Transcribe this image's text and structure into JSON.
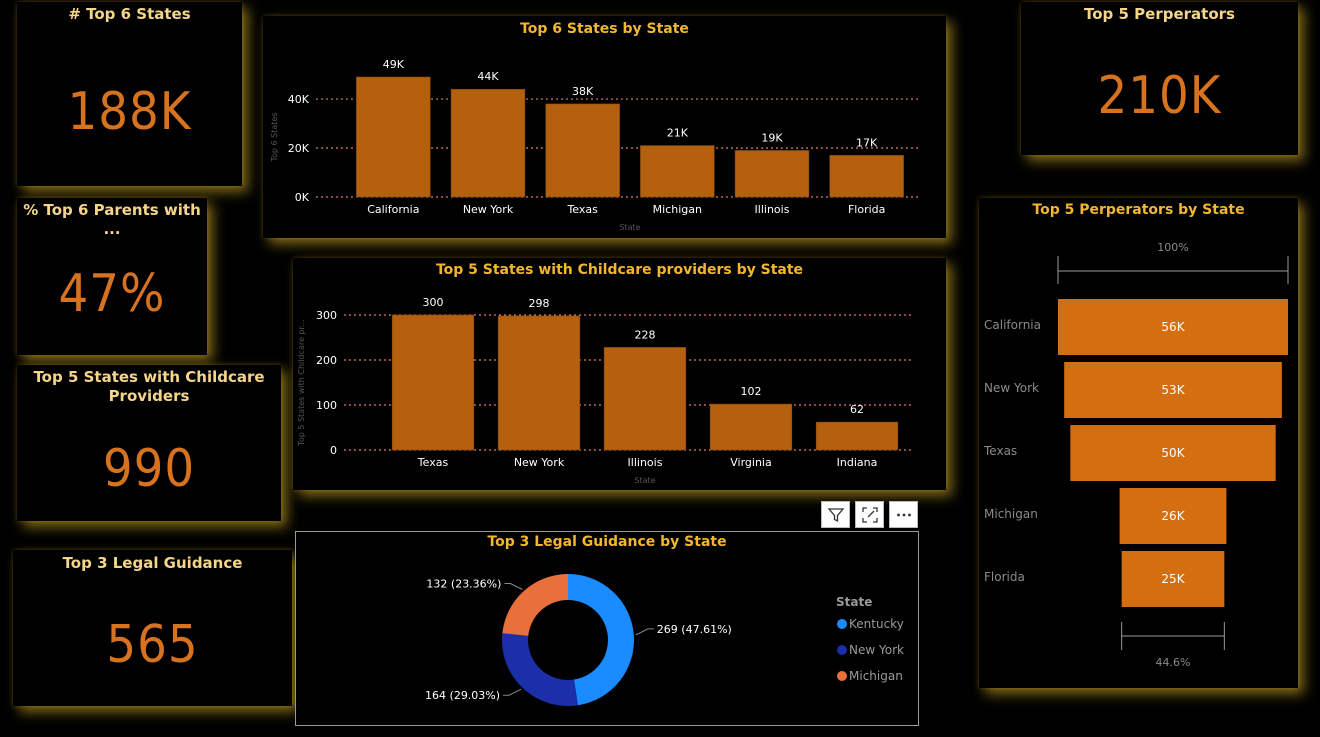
{
  "kpis": {
    "top6_states": {
      "title": "# Top 6 States",
      "value": "188K"
    },
    "pct_parents": {
      "title": "% Top 6 Parents with ...",
      "value": "47%"
    },
    "childcare": {
      "title_line1": "Top 5 States with Childcare",
      "title_line2": "Providers",
      "value": "990"
    },
    "legal": {
      "title": "Top 3 Legal Guidance",
      "value": "565"
    },
    "perpetrators": {
      "title": "Top 5 Perperators",
      "value": "210K"
    }
  },
  "colors": {
    "bar": "#b5600e",
    "funnel": "#d46f11",
    "kpi": "#d7731e",
    "title": "#f2b630",
    "kentucky": "#1a8cff",
    "new_york": "#1a2fa8",
    "michigan": "#e8703a",
    "gridline": "#e07f6a"
  },
  "chart_data": [
    {
      "id": "top6",
      "type": "bar",
      "title": "Top 6 States by State",
      "xlabel": "State",
      "ylabel": "Top 6 States",
      "categories": [
        "California",
        "New York",
        "Texas",
        "Michigan",
        "Illinois",
        "Florida"
      ],
      "values": [
        49000,
        44000,
        38000,
        21000,
        19000,
        17000
      ],
      "data_labels": [
        "49K",
        "44K",
        "38K",
        "21K",
        "19K",
        "17K"
      ],
      "yticks": [
        0,
        20000,
        40000
      ],
      "ytick_labels": [
        "0K",
        "20K",
        "40K"
      ],
      "ylim": [
        0,
        49000
      ],
      "grid": true
    },
    {
      "id": "childcare",
      "type": "bar",
      "title": "Top 5 States with Childcare providers by State",
      "xlabel": "State",
      "ylabel": "Top 5 States with Childcare pr...",
      "categories": [
        "Texas",
        "New York",
        "Illinois",
        "Virginia",
        "Indiana"
      ],
      "values": [
        300,
        298,
        228,
        102,
        62
      ],
      "data_labels": [
        "300",
        "298",
        "228",
        "102",
        "62"
      ],
      "yticks": [
        0,
        100,
        200,
        300
      ],
      "ytick_labels": [
        "0",
        "100",
        "200",
        "300"
      ],
      "ylim": [
        0,
        300
      ],
      "grid": true
    },
    {
      "id": "legal",
      "type": "pie",
      "title": "Top 3 Legal Guidance by State",
      "legend_title": "State",
      "legend_position": "right",
      "categories": [
        "Kentucky",
        "New York",
        "Michigan"
      ],
      "values": [
        269,
        164,
        132
      ],
      "data_labels": [
        "269 (47.61%)",
        "164 (29.03%)",
        "132 (23.36%)"
      ]
    },
    {
      "id": "funnel",
      "type": "bar",
      "title": "Top 5 Perperators by State",
      "categories": [
        "California",
        "New York",
        "Texas",
        "Michigan",
        "Florida"
      ],
      "values": [
        56000,
        53000,
        50000,
        26000,
        25000
      ],
      "data_labels": [
        "56K",
        "53K",
        "50K",
        "26K",
        "25K"
      ],
      "top_label": "100%",
      "bottom_label": "44.6%"
    }
  ]
}
